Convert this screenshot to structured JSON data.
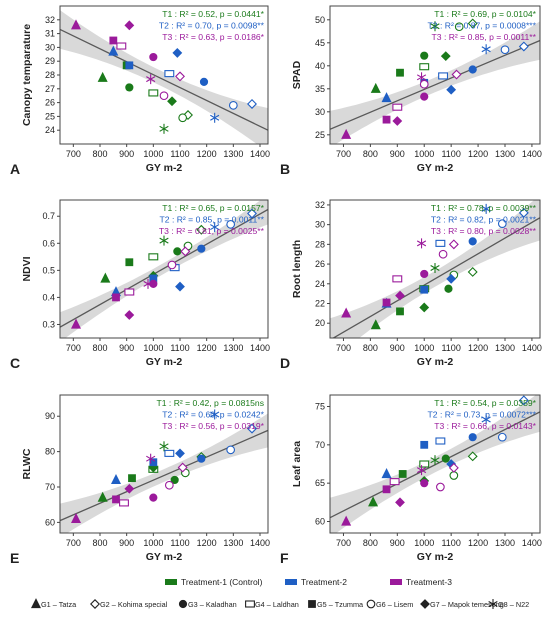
{
  "colors": {
    "T1": "#1a7a1a",
    "T2": "#1f5fc4",
    "T3": "#9b1a9b",
    "ci": "#d9d9d9",
    "line": "#595959"
  },
  "genotype_names": [
    "G1 - Tatza",
    "G2 - Kohima special",
    "G3 - Kaladhan",
    "G4 - Laldhan",
    "G5 - Tzumma",
    "G6 - Lisem",
    "G7 - Mapok temeseng",
    "G8 - N22"
  ],
  "legend": {
    "treatments": [
      {
        "label": "Treatment-1 (Control)",
        "color": "#1a7a1a"
      },
      {
        "label": "Treatment-2",
        "color": "#1f5fc4"
      },
      {
        "label": "Treatment-3",
        "color": "#9b1a9b"
      }
    ],
    "genotypes": [
      {
        "label": "G1 – Tatza",
        "marker": "triangle"
      },
      {
        "label": "G2 – Kohima special",
        "marker": "diamond-open"
      },
      {
        "label": "G3 – Kaladhan",
        "marker": "circle"
      },
      {
        "label": "G4 – Laldhan",
        "marker": "square-open"
      },
      {
        "label": "G5 – Tzumma",
        "marker": "square"
      },
      {
        "label": "G6 – Lisem",
        "marker": "circle-open"
      },
      {
        "label": "G7 – Mapok temeseng",
        "marker": "diamond"
      },
      {
        "label": "G8 – N22",
        "marker": "star"
      }
    ]
  },
  "chart_data": [
    {
      "type": "scatter",
      "panel": "A",
      "xlabel": "GY m-2",
      "ylabel": "Canopy temparature",
      "xlim": [
        650,
        1430
      ],
      "ylim": [
        23,
        33
      ],
      "xticks": [
        700,
        800,
        900,
        1000,
        1100,
        1200,
        1300,
        1400
      ],
      "yticks": [
        24,
        25,
        26,
        27,
        28,
        29,
        30,
        31,
        32
      ],
      "fit": {
        "y_at_xmin": 31.3,
        "y_at_xmax": 24.0
      },
      "ci_halfwidth": [
        1.4,
        0.55,
        1.6
      ],
      "stats": [
        {
          "t": "T1",
          "text": "T1 : R² = 0.52, p = 0.0441*"
        },
        {
          "t": "T2",
          "text": "T2 : R² = 0.70, p = 0.0098**"
        },
        {
          "t": "T3",
          "text": "T3 : R² = 0.63, p = 0.0186*"
        }
      ],
      "series": [
        {
          "t": "T1",
          "points": [
            [
              810,
              27.8
            ],
            [
              1130,
              25.1
            ],
            [
              910,
              27.1
            ],
            [
              1000,
              26.7
            ],
            [
              900,
              28.7
            ],
            [
              1110,
              24.9
            ],
            [
              1070,
              26.1
            ],
            [
              1040,
              24.1
            ]
          ]
        },
        {
          "t": "T2",
          "points": [
            [
              850,
              29.7
            ],
            [
              1370,
              25.9
            ],
            [
              1190,
              27.5
            ],
            [
              1060,
              28.1
            ],
            [
              910,
              28.7
            ],
            [
              1300,
              25.8
            ],
            [
              1090,
              29.6
            ],
            [
              1230,
              24.9
            ]
          ]
        },
        {
          "t": "T3",
          "points": [
            [
              710,
              31.6
            ],
            [
              1100,
              27.9
            ],
            [
              1000,
              29.3
            ],
            [
              880,
              30.1
            ],
            [
              850,
              30.5
            ],
            [
              1040,
              26.5
            ],
            [
              910,
              31.6
            ],
            [
              990,
              27.7
            ]
          ]
        }
      ]
    },
    {
      "type": "scatter",
      "panel": "B",
      "xlabel": "GY m-2",
      "ylabel": "SPAD",
      "xlim": [
        650,
        1430
      ],
      "ylim": [
        23,
        53
      ],
      "xticks": [
        700,
        800,
        900,
        1000,
        1100,
        1200,
        1300,
        1400
      ],
      "yticks": [
        25,
        30,
        35,
        40,
        45,
        50
      ],
      "fit": {
        "y_at_xmin": 26.2,
        "y_at_xmax": 45.5
      },
      "ci_halfwidth": [
        4.0,
        1.6,
        4.2
      ],
      "stats": [
        {
          "t": "T1",
          "text": "T1 : R² = 0.69, p = 0.0104*"
        },
        {
          "t": "T2",
          "text": "T2 : R² = 0.87, p = 0.0008***"
        },
        {
          "t": "T3",
          "text": "T3 : R² = 0.85, p = 0.0011**"
        }
      ],
      "series": [
        {
          "t": "T1",
          "points": [
            [
              820,
              35.0
            ],
            [
              1180,
              49.2
            ],
            [
              1000,
              42.2
            ],
            [
              1000,
              39.8
            ],
            [
              910,
              38.5
            ],
            [
              1130,
              48.5
            ],
            [
              1080,
              42.1
            ],
            [
              1040,
              48.6
            ]
          ]
        },
        {
          "t": "T2",
          "points": [
            [
              860,
              33.0
            ],
            [
              1370,
              44.2
            ],
            [
              1180,
              39.2
            ],
            [
              1070,
              37.8
            ],
            [
              1000,
              36.3
            ],
            [
              1300,
              43.5
            ],
            [
              1100,
              34.8
            ],
            [
              1230,
              43.6
            ]
          ]
        },
        {
          "t": "T3",
          "points": [
            [
              710,
              25.0
            ],
            [
              1120,
              38.1
            ],
            [
              1000,
              33.3
            ],
            [
              900,
              31.0
            ],
            [
              860,
              28.3
            ],
            [
              1000,
              36.0
            ],
            [
              900,
              28.0
            ],
            [
              990,
              37.5
            ]
          ]
        }
      ]
    },
    {
      "type": "scatter",
      "panel": "C",
      "xlabel": "GY m-2",
      "ylabel": "NDVI",
      "xlim": [
        650,
        1430
      ],
      "ylim": [
        0.25,
        0.76
      ],
      "xticks": [
        700,
        800,
        900,
        1000,
        1100,
        1200,
        1300,
        1400
      ],
      "yticks": [
        0.3,
        0.4,
        0.5,
        0.6,
        0.7
      ],
      "fit": {
        "y_at_xmin": 0.29,
        "y_at_xmax": 0.725
      },
      "ci_halfwidth": [
        0.055,
        0.02,
        0.055
      ],
      "stats": [
        {
          "t": "T1",
          "text": "T1 : R² = 0.65, p = 0.0157*"
        },
        {
          "t": "T2",
          "text": "T2 : R² = 0.85, p = 0.0011**"
        },
        {
          "t": "T3",
          "text": "T3 : R² = 0.81, p = 0.0025**"
        }
      ],
      "series": [
        {
          "t": "T1",
          "points": [
            [
              820,
              0.47
            ],
            [
              1180,
              0.65
            ],
            [
              1090,
              0.57
            ],
            [
              1000,
              0.55
            ],
            [
              910,
              0.53
            ],
            [
              1130,
              0.59
            ],
            [
              1000,
              0.48
            ],
            [
              1040,
              0.61
            ]
          ]
        },
        {
          "t": "T2",
          "points": [
            [
              860,
              0.42
            ],
            [
              1370,
              0.71
            ],
            [
              1180,
              0.58
            ],
            [
              1080,
              0.51
            ],
            [
              1000,
              0.47
            ],
            [
              1290,
              0.67
            ],
            [
              1100,
              0.44
            ],
            [
              1230,
              0.66
            ]
          ]
        },
        {
          "t": "T3",
          "points": [
            [
              710,
              0.3
            ],
            [
              1120,
              0.57
            ],
            [
              1000,
              0.45
            ],
            [
              910,
              0.42
            ],
            [
              860,
              0.4
            ],
            [
              1070,
              0.52
            ],
            [
              910,
              0.335
            ],
            [
              980,
              0.45
            ]
          ]
        }
      ]
    },
    {
      "type": "scatter",
      "panel": "D",
      "xlabel": "GY m-2",
      "ylabel": "Root length",
      "xlim": [
        650,
        1430
      ],
      "ylim": [
        18.5,
        32.5
      ],
      "xticks": [
        700,
        800,
        900,
        1000,
        1100,
        1200,
        1300,
        1400
      ],
      "yticks": [
        20,
        22,
        24,
        26,
        28,
        30,
        32
      ],
      "fit": {
        "y_at_xmin": 18.3,
        "y_at_xmax": 30.7
      },
      "ci_halfwidth": [
        2.2,
        0.8,
        2.3
      ],
      "stats": [
        {
          "t": "T1",
          "text": "T1 : R² = 0.78, p = 0.0039**"
        },
        {
          "t": "T2",
          "text": "T2 : R² = 0.82, p = 0.0021**"
        },
        {
          "t": "T3",
          "text": "T3 : R² = 0.80, p = 0.0028**"
        }
      ],
      "series": [
        {
          "t": "T1",
          "points": [
            [
              820,
              19.8
            ],
            [
              1180,
              25.2
            ],
            [
              1090,
              23.5
            ],
            [
              1000,
              23.5
            ],
            [
              910,
              21.2
            ],
            [
              1110,
              24.9
            ],
            [
              1000,
              21.6
            ],
            [
              1040,
              25.6
            ]
          ]
        },
        {
          "t": "T2",
          "points": [
            [
              860,
              22.0
            ],
            [
              1370,
              31.2
            ],
            [
              1180,
              28.3
            ],
            [
              1060,
              28.1
            ],
            [
              1000,
              23.4
            ],
            [
              1290,
              30.1
            ],
            [
              1100,
              24.5
            ],
            [
              1230,
              31.6
            ]
          ]
        },
        {
          "t": "T3",
          "points": [
            [
              710,
              21.0
            ],
            [
              1110,
              28.0
            ],
            [
              1000,
              25.0
            ],
            [
              900,
              24.5
            ],
            [
              860,
              22.1
            ],
            [
              1070,
              27.0
            ],
            [
              910,
              22.8
            ],
            [
              990,
              28.1
            ]
          ]
        }
      ]
    },
    {
      "type": "scatter",
      "panel": "E",
      "xlabel": "GY m-2",
      "ylabel": "RLWC",
      "xlim": [
        650,
        1430
      ],
      "ylim": [
        57,
        96
      ],
      "xticks": [
        700,
        800,
        900,
        1000,
        1100,
        1200,
        1300,
        1400
      ],
      "yticks": [
        60,
        70,
        80,
        90
      ],
      "fit": {
        "y_at_xmin": 60.5,
        "y_at_xmax": 86.0
      },
      "ci_halfwidth": [
        4.8,
        1.8,
        4.8
      ],
      "stats": [
        {
          "t": "T1",
          "text": "T1 : R² = 0.42, p = 0.0815ns"
        },
        {
          "t": "T2",
          "text": "T2 : R² = 0.60, p = 0.0242*"
        },
        {
          "t": "T3",
          "text": "T3 : R² = 0.56, p = 0.0319*"
        }
      ],
      "series": [
        {
          "t": "T1",
          "points": [
            [
              810,
              67.0
            ],
            [
              1180,
              78.5
            ],
            [
              1080,
              72.0
            ],
            [
              1000,
              75.0
            ],
            [
              920,
              72.5
            ],
            [
              1120,
              74.0
            ],
            [
              1000,
              75.5
            ],
            [
              1040,
              81.5
            ]
          ]
        },
        {
          "t": "T2",
          "points": [
            [
              860,
              72.0
            ],
            [
              1370,
              86.5
            ],
            [
              1180,
              78.0
            ],
            [
              1060,
              79.5
            ],
            [
              1000,
              77.0
            ],
            [
              1290,
              80.5
            ],
            [
              1100,
              79.5
            ],
            [
              1230,
              90.5
            ]
          ]
        },
        {
          "t": "T3",
          "points": [
            [
              710,
              61.0
            ],
            [
              1110,
              75.5
            ],
            [
              1000,
              67.0
            ],
            [
              890,
              65.5
            ],
            [
              860,
              66.5
            ],
            [
              1060,
              70.5
            ],
            [
              910,
              69.5
            ],
            [
              990,
              78.0
            ]
          ]
        }
      ]
    },
    {
      "type": "scatter",
      "panel": "F",
      "xlabel": "GY m-2",
      "ylabel": "Leaf area",
      "xlim": [
        650,
        1430
      ],
      "ylim": [
        58.5,
        76.5
      ],
      "xticks": [
        700,
        800,
        900,
        1000,
        1100,
        1200,
        1300,
        1400
      ],
      "yticks": [
        60,
        65,
        70,
        75
      ],
      "fit": {
        "y_at_xmin": 60.5,
        "y_at_xmax": 74.3
      },
      "ci_halfwidth": [
        2.6,
        1.0,
        2.6
      ],
      "stats": [
        {
          "t": "T1",
          "text": "T1 : R² = 0.54, p = 0.0359*"
        },
        {
          "t": "T2",
          "text": "T2 : R² = 0.73, p = 0.0072***"
        },
        {
          "t": "T3",
          "text": "T3 : R² = 0.66, p = 0.0143*"
        }
      ],
      "series": [
        {
          "t": "T1",
          "points": [
            [
              810,
              62.5
            ],
            [
              1180,
              68.5
            ],
            [
              1080,
              68.2
            ],
            [
              1000,
              67.5
            ],
            [
              920,
              66.2
            ],
            [
              1110,
              66.0
            ],
            [
              1000,
              65.3
            ],
            [
              1040,
              68.0
            ]
          ]
        },
        {
          "t": "T2",
          "points": [
            [
              860,
              66.2
            ],
            [
              1370,
              75.8
            ],
            [
              1180,
              71.0
            ],
            [
              1060,
              70.5
            ],
            [
              1000,
              70.0
            ],
            [
              1290,
              71.0
            ],
            [
              1100,
              67.5
            ],
            [
              1230,
              73.3
            ]
          ]
        },
        {
          "t": "T3",
          "points": [
            [
              710,
              60.0
            ],
            [
              1110,
              67.0
            ],
            [
              1000,
              65.0
            ],
            [
              890,
              65.2
            ],
            [
              860,
              64.2
            ],
            [
              1060,
              64.5
            ],
            [
              910,
              62.5
            ],
            [
              990,
              66.7
            ]
          ]
        }
      ]
    }
  ]
}
